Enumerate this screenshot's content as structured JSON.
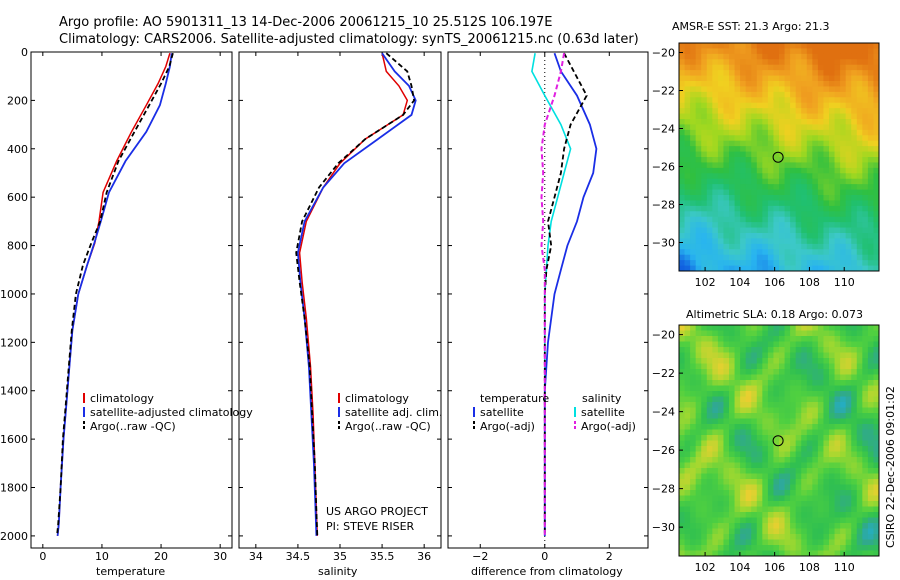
{
  "header": {
    "title_line1": "Argo profile: AO 5901311_13 14-Dec-2006 20061215_10 25.512S 106.197E",
    "title_line2": "Climatology: CARS2006. Satellite-adjusted climatology: synTS_20061215.nc (0.63d later)"
  },
  "side_label": "CSIRO 22-Dec-2006 09:01:02",
  "colors": {
    "climatology": "#e00000",
    "satellite": "#1a2ee6",
    "argo": "#000000",
    "sal_satellite": "#00e0e0",
    "sal_argo": "#e020e0"
  },
  "chart_data": [
    {
      "type": "line",
      "xlabel": "temperature",
      "ylabel": "",
      "xlim": [
        -2,
        32
      ],
      "ylim": [
        2050,
        0
      ],
      "xticks": [
        0,
        10,
        20,
        30
      ],
      "yticks": [
        0,
        200,
        400,
        600,
        800,
        1000,
        1200,
        1400,
        1600,
        1800,
        2000
      ],
      "legend": [
        "climatology",
        "satellite-adjusted climatology",
        "Argo(..raw -QC)"
      ],
      "legend_position": "lower-right",
      "series": [
        {
          "name": "climatology",
          "x": [
            21.5,
            20.8,
            19.5,
            17.5,
            15.0,
            12.5,
            10.2,
            9.5,
            8.8,
            7.5,
            6.0,
            5.0,
            4.5,
            4.0,
            3.5,
            3.0,
            2.7,
            2.5
          ],
          "y": [
            5,
            60,
            130,
            220,
            330,
            450,
            580,
            700,
            790,
            880,
            1000,
            1150,
            1300,
            1450,
            1600,
            1800,
            1950,
            2000
          ]
        },
        {
          "name": "satellite-adjusted climatology",
          "x": [
            21.8,
            21.5,
            20.8,
            19.8,
            17.5,
            14.0,
            11.2,
            9.8,
            8.7,
            7.5,
            6.0,
            5.0,
            4.5,
            4.0,
            3.5,
            3.0,
            2.7,
            2.5
          ],
          "y": [
            5,
            60,
            130,
            220,
            330,
            450,
            580,
            700,
            790,
            880,
            1000,
            1150,
            1300,
            1450,
            1600,
            1800,
            1950,
            2000
          ]
        },
        {
          "name": "Argo(..raw -QC)",
          "x": [
            22.0,
            21.4,
            20.0,
            18.0,
            15.5,
            12.8,
            10.8,
            9.7,
            8.2,
            6.8,
            5.6,
            4.9,
            4.4,
            3.9,
            3.4,
            3.0,
            2.6,
            2.4
          ],
          "y": [
            5,
            60,
            130,
            220,
            330,
            450,
            580,
            700,
            790,
            880,
            1000,
            1150,
            1300,
            1450,
            1600,
            1800,
            1950,
            2000
          ]
        }
      ]
    },
    {
      "type": "line",
      "xlabel": "salinity",
      "ylabel": "",
      "xlim": [
        33.8,
        36.2
      ],
      "ylim": [
        2050,
        0
      ],
      "xticks": [
        34,
        34.5,
        35,
        35.5,
        36
      ],
      "legend": [
        "climatology",
        "satellite adj. clim.",
        "Argo(..raw -QC)"
      ],
      "legend_position": "lower-right",
      "annotation_lines": [
        "US ARGO PROJECT",
        "PI: STEVE RISER"
      ],
      "series": [
        {
          "name": "climatology",
          "x": [
            35.5,
            35.55,
            35.7,
            35.8,
            35.75,
            35.3,
            35.0,
            34.8,
            34.6,
            34.52,
            34.55,
            34.6,
            34.65,
            34.68,
            34.7,
            34.72,
            34.73
          ],
          "y": [
            5,
            80,
            140,
            200,
            260,
            360,
            460,
            560,
            700,
            830,
            950,
            1100,
            1300,
            1500,
            1700,
            1900,
            2000
          ]
        },
        {
          "name": "satellite adj. clim.",
          "x": [
            35.5,
            35.65,
            35.82,
            35.9,
            35.85,
            35.45,
            35.05,
            34.8,
            34.58,
            34.5,
            34.53,
            34.58,
            34.63,
            34.66,
            34.69,
            34.71,
            34.72
          ],
          "y": [
            5,
            80,
            140,
            200,
            260,
            360,
            460,
            560,
            700,
            830,
            950,
            1100,
            1300,
            1500,
            1700,
            1900,
            2000
          ]
        },
        {
          "name": "Argo(..raw -QC)",
          "x": [
            35.55,
            35.8,
            35.85,
            35.88,
            35.75,
            35.3,
            34.98,
            34.75,
            34.55,
            34.48,
            34.52,
            34.58,
            34.64,
            34.67,
            34.7,
            34.72,
            34.73
          ],
          "y": [
            5,
            80,
            140,
            200,
            260,
            360,
            460,
            560,
            700,
            830,
            950,
            1100,
            1300,
            1500,
            1700,
            1900,
            2000
          ]
        }
      ]
    },
    {
      "type": "line",
      "xlabel": "difference from climatology",
      "ylabel": "",
      "xlim": [
        -3,
        3.2
      ],
      "ylim": [
        2050,
        0
      ],
      "xticks": [
        -2,
        0,
        2
      ],
      "legend": [
        "temperature",
        "satellite",
        "Argo(-adj)",
        "salinity",
        "satellite",
        "Argo(-adj)"
      ],
      "legend_position": "lower-center",
      "series": [
        {
          "name": "temperature satellite",
          "x": [
            0.3,
            0.5,
            1.0,
            1.4,
            1.6,
            1.5,
            1.2,
            1.0,
            0.7,
            0.5,
            0.3,
            0.1,
            0.0,
            0.0,
            0.0,
            0.0
          ],
          "y": [
            5,
            80,
            180,
            300,
            400,
            500,
            600,
            700,
            800,
            900,
            1000,
            1200,
            1400,
            1600,
            1800,
            2000
          ]
        },
        {
          "name": "temperature Argo(-adj)",
          "x": [
            0.6,
            0.9,
            1.3,
            0.8,
            0.6,
            0.5,
            0.3,
            0.1,
            0.2,
            0.05,
            0.0,
            0.0,
            0.0,
            0.0,
            0.0,
            0.0
          ],
          "y": [
            5,
            80,
            180,
            300,
            400,
            500,
            600,
            700,
            800,
            900,
            1000,
            1200,
            1400,
            1600,
            1800,
            2000
          ]
        },
        {
          "name": "salinity satellite",
          "x": [
            -0.3,
            -0.4,
            0.0,
            0.5,
            0.8,
            0.6,
            0.4,
            0.2,
            0.1,
            0.05,
            0.0,
            0.0,
            0.0,
            0.0,
            0.0,
            0.0
          ],
          "y": [
            5,
            80,
            180,
            300,
            400,
            500,
            600,
            700,
            800,
            900,
            1000,
            1200,
            1400,
            1600,
            1800,
            2000
          ]
        },
        {
          "name": "salinity Argo(-adj)",
          "x": [
            0.6,
            0.5,
            0.3,
            0.0,
            -0.1,
            -0.05,
            -0.1,
            -0.05,
            -0.1,
            0.0,
            0.0,
            0.0,
            0.0,
            0.0,
            0.0,
            0.0
          ],
          "y": [
            5,
            80,
            180,
            300,
            400,
            500,
            600,
            700,
            800,
            900,
            1000,
            1200,
            1400,
            1600,
            1800,
            2000
          ]
        }
      ]
    },
    {
      "type": "heatmap",
      "title": "AMSR-E SST: 21.3 Argo: 21.3",
      "xlim": [
        100.5,
        112
      ],
      "ylim": [
        -31.5,
        -19.5
      ],
      "xticks": [
        102,
        104,
        106,
        108,
        110
      ],
      "yticks": [
        -20,
        -22,
        -24,
        -26,
        -28,
        -30
      ],
      "marker": {
        "lon": 106.197,
        "lat": -25.512
      },
      "color_stops": [
        "#1060e0",
        "#28b4f0",
        "#3cc8c8",
        "#20c070",
        "#30c040",
        "#a0d820",
        "#f0d020",
        "#f0a020",
        "#e07010"
      ]
    },
    {
      "type": "heatmap",
      "title": "Altimetric SLA: 0.18 Argo: 0.073",
      "xlim": [
        100.5,
        112
      ],
      "ylim": [
        -31.5,
        -19.5
      ],
      "xticks": [
        102,
        104,
        106,
        108,
        110
      ],
      "yticks": [
        -20,
        -22,
        -24,
        -26,
        -28,
        -30
      ],
      "marker": {
        "lon": 106.197,
        "lat": -25.512
      },
      "color_stops": [
        "#20b0d8",
        "#30a890",
        "#30c050",
        "#50d040",
        "#a0d830",
        "#e8d030",
        "#f0a030",
        "#e06020"
      ]
    }
  ]
}
